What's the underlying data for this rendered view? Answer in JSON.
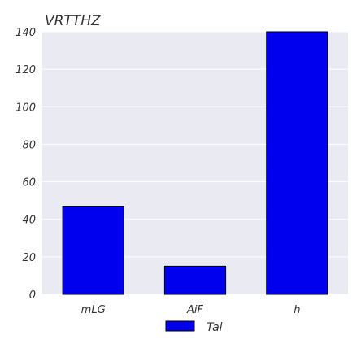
{
  "chart_data": {
    "type": "bar",
    "title": "VRTTHZ",
    "categories": [
      "mLG",
      "AiF",
      "h"
    ],
    "series": [
      {
        "name": "Tal",
        "values": [
          47,
          15,
          140
        ]
      }
    ],
    "xlabel": "",
    "ylabel": "",
    "ylim": [
      0,
      140
    ],
    "yticks": [
      0,
      20,
      40,
      60,
      80,
      100,
      120,
      140
    ],
    "grid": true,
    "legend": "bottom-center",
    "colors": {
      "plot_background": "#eaeaf2",
      "bar_fill": "#0000ee",
      "bar_stroke": "#000000",
      "grid": "#ffffff",
      "text": "#333333"
    }
  }
}
